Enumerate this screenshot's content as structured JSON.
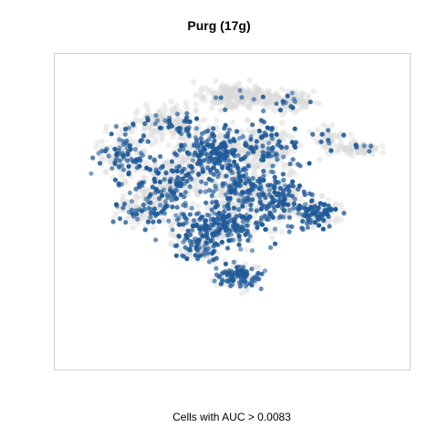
{
  "chart_data": {
    "type": "scatter",
    "title": "Purg (17g)",
    "xlabel": "Cells with AUC > 0.0083",
    "ylabel": "",
    "axes_visible": false,
    "grid": false,
    "legend": "none",
    "background_color": "#d9d9d9",
    "highlight_color": "#1f5b99",
    "clusters": [
      {
        "cx": 0.02,
        "cy": 0.88,
        "rx": 0.18,
        "ry": 0.08,
        "n": 220,
        "hl": 0.04
      },
      {
        "cx": 0.35,
        "cy": 0.84,
        "rx": 0.13,
        "ry": 0.06,
        "n": 110,
        "hl": 0.08
      },
      {
        "cx": -0.4,
        "cy": 0.7,
        "rx": 0.2,
        "ry": 0.1,
        "n": 170,
        "hl": 0.12
      },
      {
        "cx": -0.12,
        "cy": 0.52,
        "rx": 0.18,
        "ry": 0.16,
        "n": 320,
        "hl": 0.52
      },
      {
        "cx": 0.22,
        "cy": 0.52,
        "rx": 0.18,
        "ry": 0.14,
        "n": 230,
        "hl": 0.25
      },
      {
        "cx": 0.6,
        "cy": 0.58,
        "rx": 0.1,
        "ry": 0.09,
        "n": 60,
        "hl": 0.2
      },
      {
        "cx": -0.66,
        "cy": 0.48,
        "rx": 0.14,
        "ry": 0.14,
        "n": 160,
        "hl": 0.4
      },
      {
        "cx": 0.78,
        "cy": 0.53,
        "rx": 0.1,
        "ry": 0.04,
        "n": 70,
        "hl": 0.05
      },
      {
        "cx": -0.36,
        "cy": 0.3,
        "rx": 0.22,
        "ry": 0.18,
        "n": 330,
        "hl": 0.3
      },
      {
        "cx": 0.05,
        "cy": 0.25,
        "rx": 0.18,
        "ry": 0.16,
        "n": 300,
        "hl": 0.4
      },
      {
        "cx": 0.3,
        "cy": 0.2,
        "rx": 0.15,
        "ry": 0.16,
        "n": 200,
        "hl": 0.45
      },
      {
        "cx": -0.52,
        "cy": 0.12,
        "rx": 0.16,
        "ry": 0.1,
        "n": 130,
        "hl": 0.35
      },
      {
        "cx": -0.1,
        "cy": 0.0,
        "rx": 0.26,
        "ry": 0.12,
        "n": 320,
        "hl": 0.58
      },
      {
        "cx": 0.52,
        "cy": 0.1,
        "rx": 0.12,
        "ry": 0.08,
        "n": 140,
        "hl": 0.55
      },
      {
        "cx": 0.05,
        "cy": -0.32,
        "rx": 0.12,
        "ry": 0.08,
        "n": 140,
        "hl": 0.5
      },
      {
        "cx": -0.2,
        "cy": -0.14,
        "rx": 0.12,
        "ry": 0.07,
        "n": 100,
        "hl": 0.35
      }
    ]
  }
}
